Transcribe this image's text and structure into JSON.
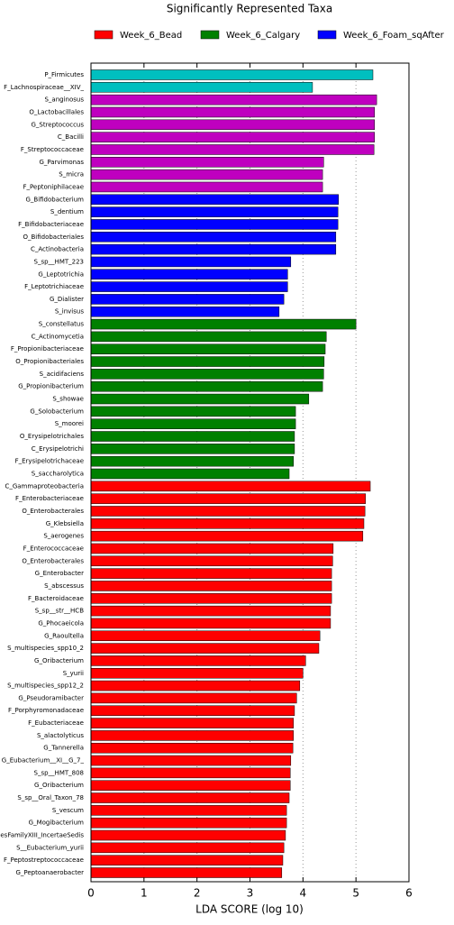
{
  "chart_data": {
    "type": "barh",
    "title": "Significantly Represented Taxa",
    "xlabel": "LDA SCORE (log 10)",
    "legend": [
      {
        "name": "Week_6_Bead",
        "color": "#ff0000"
      },
      {
        "name": "Week_6_Calgary",
        "color": "#008000"
      },
      {
        "name": "Week_6_Foam_sqAfter",
        "color": "#0000ff"
      }
    ],
    "categories": [
      "P_Firmicutes",
      "F_Lachnospiraceae__XIV_",
      "S_anginosus",
      "O_Lactobacillales",
      "G_Streptococcus",
      "C_Bacilli",
      "F_Streptococcaceae",
      "G_Parvimonas",
      "S_micra",
      "F_Peptoniphilaceae",
      "G_Bifidobacterium",
      "S_dentium",
      "F_Bifidobacteriaceae",
      "O_Bifidobacteriales",
      "C_Actinobacteria",
      "S_sp__HMT_223",
      "G_Leptotrichia",
      "F_Leptotrichiaceae",
      "G_Dialister",
      "S_invisus",
      "S_constellatus",
      "C_Actinomycetia",
      "F_Propionibacteriaceae",
      "O_Propionibacteriales",
      "S_acidifaciens",
      "G_Propionibacterium",
      "S_showae",
      "G_Solobacterium",
      "S_moorei",
      "O_Erysipelotrichales",
      "C_Erysipelotrichi",
      "F_Erysipelotrichaceae",
      "S_saccharolytica",
      "C_Gammaproteobacteria",
      "F_Enterobacteriaceae",
      "O_Enterobacterales",
      "G_Klebsiella",
      "S_aerogenes",
      "F_Enterococcaceae",
      "O_Enterobacterales",
      "G_Enterobacter",
      "S_abscessus",
      "F_Bacteroidaceae",
      "S_sp__str__HCB",
      "G_Phocaeicola",
      "G_Raoultella",
      "S_multispecies_spp10_2",
      "G_Oribacterium",
      "S_yurii",
      "S_multispecies_spp12_2",
      "G_Pseudoramibacter",
      "F_Porphyromonadaceae",
      "F_Eubacteriaceae",
      "S_alactolyticus",
      "G_Tannerella",
      "G_Eubacterium__XI__G_7_",
      "S_sp__HMT_808",
      "G_Oribacterium",
      "S_sp__Oral_Taxon_78",
      "S_vescum",
      "G_Mogibacterium",
      "esFamilyXIII_IncertaeSedis",
      "S__Eubacterium_yurii",
      "F_Peptostreptococcaceae",
      "G_Peptoanaerobacter"
    ],
    "values": [
      5.32,
      4.18,
      5.39,
      5.35,
      5.35,
      5.35,
      5.34,
      4.39,
      4.37,
      4.37,
      4.67,
      4.66,
      4.66,
      4.62,
      4.62,
      3.77,
      3.71,
      3.71,
      3.64,
      3.55,
      5.0,
      4.44,
      4.42,
      4.4,
      4.39,
      4.37,
      4.11,
      3.86,
      3.86,
      3.84,
      3.84,
      3.82,
      3.74,
      5.27,
      5.18,
      5.17,
      5.15,
      5.13,
      4.57,
      4.56,
      4.54,
      4.54,
      4.54,
      4.52,
      4.52,
      4.32,
      4.3,
      4.05,
      4.0,
      3.94,
      3.88,
      3.84,
      3.82,
      3.82,
      3.81,
      3.77,
      3.76,
      3.76,
      3.74,
      3.69,
      3.69,
      3.67,
      3.64,
      3.62,
      3.6
    ],
    "colors": [
      "#00bfbf",
      "#00bfbf",
      "#bf00bf",
      "#bf00bf",
      "#bf00bf",
      "#bf00bf",
      "#bf00bf",
      "#bf00bf",
      "#bf00bf",
      "#bf00bf",
      "#0000ff",
      "#0000ff",
      "#0000ff",
      "#0000ff",
      "#0000ff",
      "#0000ff",
      "#0000ff",
      "#0000ff",
      "#0000ff",
      "#0000ff",
      "#008000",
      "#008000",
      "#008000",
      "#008000",
      "#008000",
      "#008000",
      "#008000",
      "#008000",
      "#008000",
      "#008000",
      "#008000",
      "#008000",
      "#008000",
      "#ff0000",
      "#ff0000",
      "#ff0000",
      "#ff0000",
      "#ff0000",
      "#ff0000",
      "#ff0000",
      "#ff0000",
      "#ff0000",
      "#ff0000",
      "#ff0000",
      "#ff0000",
      "#ff0000",
      "#ff0000",
      "#ff0000",
      "#ff0000",
      "#ff0000",
      "#ff0000",
      "#ff0000",
      "#ff0000",
      "#ff0000",
      "#ff0000",
      "#ff0000",
      "#ff0000",
      "#ff0000",
      "#ff0000",
      "#ff0000",
      "#ff0000",
      "#ff0000",
      "#ff0000",
      "#ff0000",
      "#ff0000"
    ],
    "xlim": [
      0,
      6
    ],
    "xticks": [
      0,
      1,
      2,
      3,
      4,
      5,
      6
    ],
    "grid": true
  }
}
